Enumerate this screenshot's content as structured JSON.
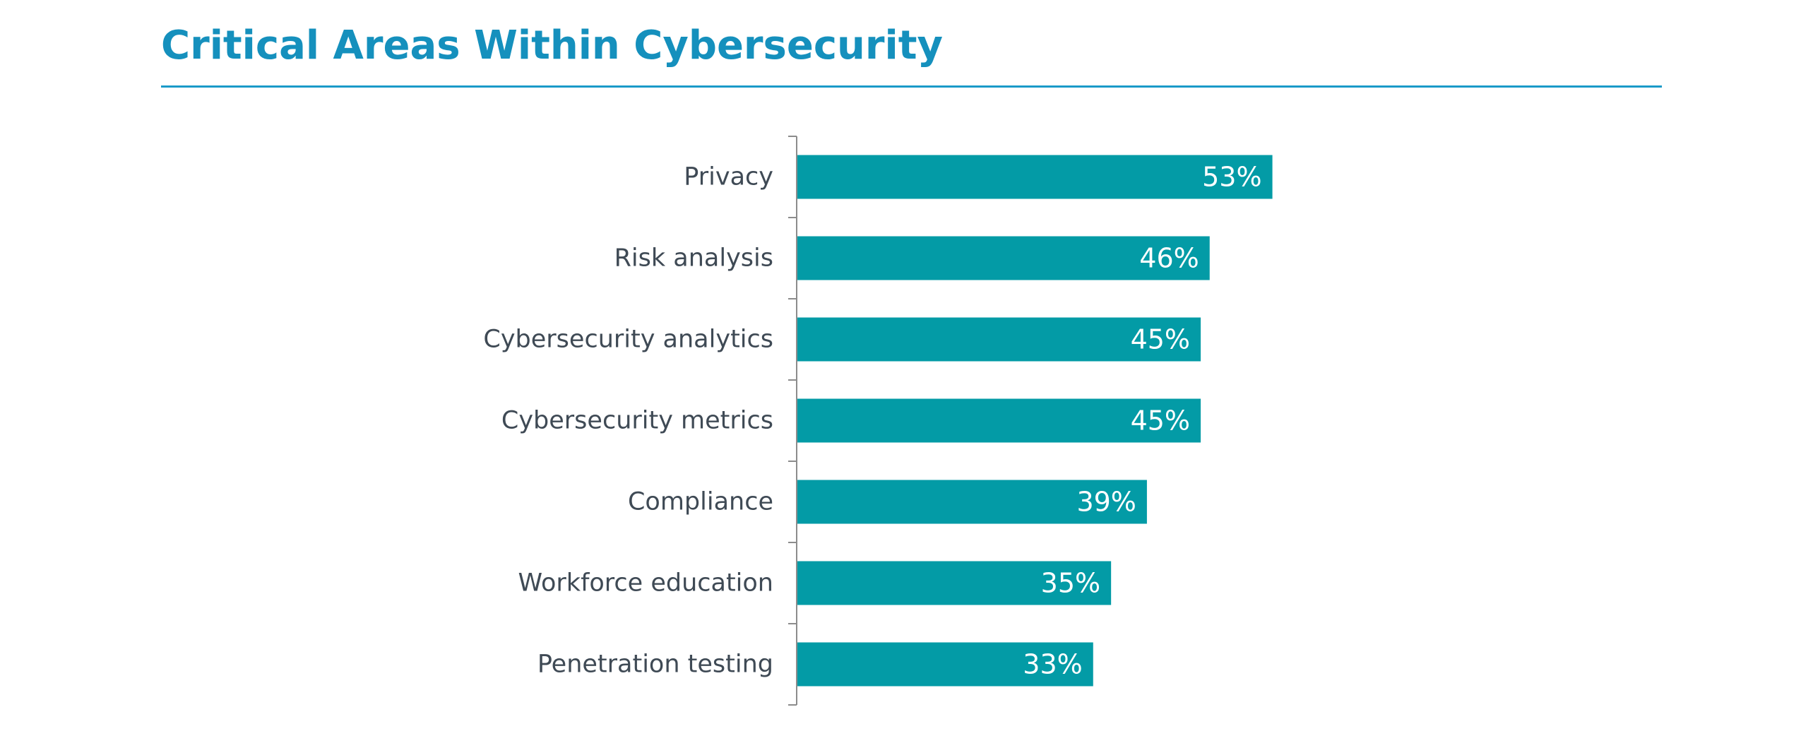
{
  "chart_data": {
    "type": "bar",
    "orientation": "horizontal",
    "title": "Critical Areas Within Cybersecurity",
    "categories": [
      "Privacy",
      "Risk analysis",
      "Cybersecurity analytics",
      "Cybersecurity metrics",
      "Compliance",
      "Workforce education",
      "Penetration testing"
    ],
    "values": [
      53,
      46,
      45,
      45,
      39,
      35,
      33
    ],
    "value_labels": [
      "53%",
      "46%",
      "45%",
      "45%",
      "39%",
      "35%",
      "33%"
    ],
    "xlim": [
      0,
      100
    ],
    "grid": false,
    "legend": "none"
  },
  "colors": {
    "title": "#1590bd",
    "rule": "#1b9ac8",
    "bar": "#039ba6",
    "axis": "#8c8c8c",
    "category_text": "#3f4a55",
    "value_text": "#ffffff"
  }
}
